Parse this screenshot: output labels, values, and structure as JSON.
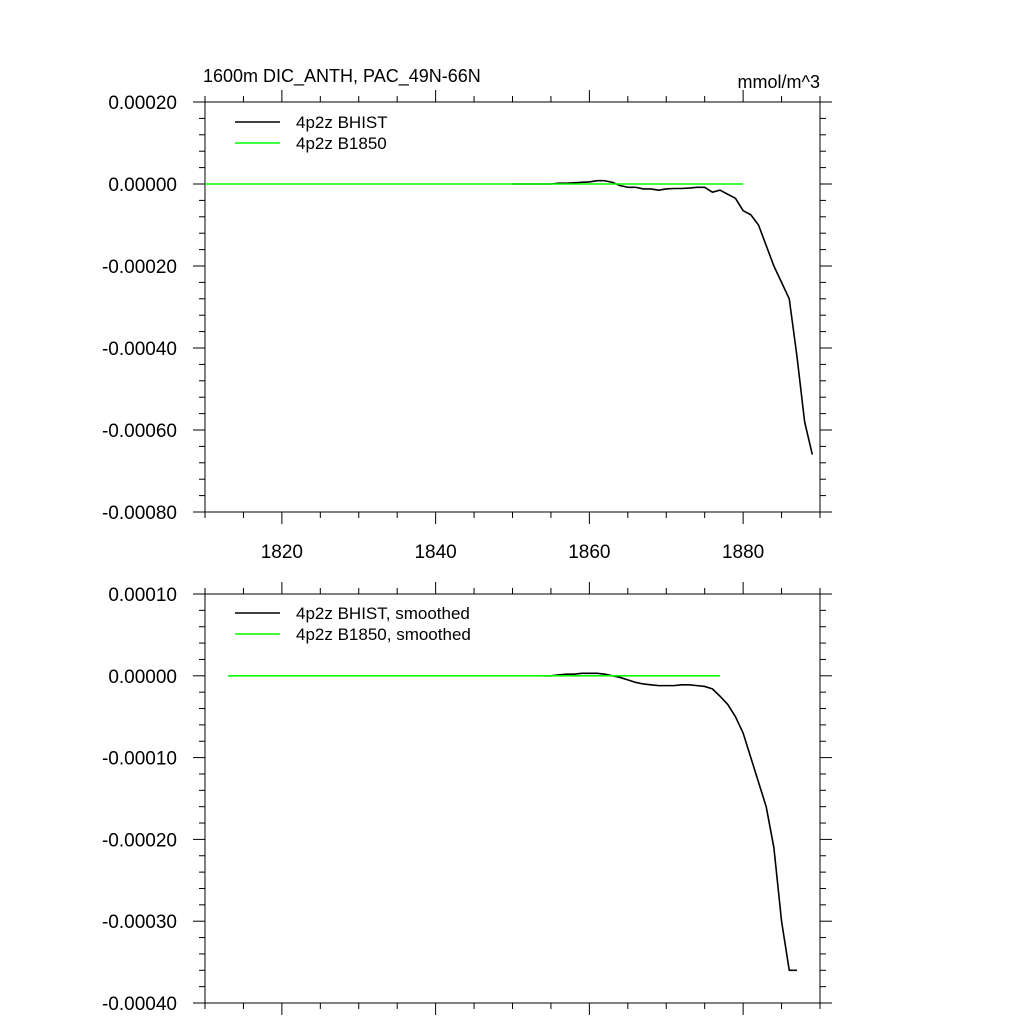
{
  "chart_data": [
    {
      "type": "line",
      "title": "1600m DIC_ANTH, PAC_49N-66N",
      "units": "mmol/m^3",
      "xlim": [
        1810,
        1890
      ],
      "ylim": [
        -0.0008,
        0.0002
      ],
      "x_ticks": [
        1820,
        1840,
        1860,
        1880
      ],
      "x_tick_labels": [
        "1820",
        "1840",
        "1860",
        "1880"
      ],
      "y_ticks": [
        0.0002,
        0.0,
        -0.0002,
        -0.0004,
        -0.0006,
        -0.0008
      ],
      "y_tick_labels": [
        "0.00020",
        "0.00000",
        "-0.00020",
        "-0.00040",
        "-0.00060",
        "-0.00080"
      ],
      "grid": false,
      "legend_position": "top-left",
      "series": [
        {
          "name": "4p2z BHIST",
          "color": "#000000",
          "x": [
            1850,
            1851,
            1852,
            1853,
            1854,
            1855,
            1856,
            1857,
            1858,
            1859,
            1860,
            1861,
            1862,
            1863,
            1864,
            1865,
            1866,
            1867,
            1868,
            1869,
            1870,
            1871,
            1872,
            1873,
            1874,
            1875,
            1876,
            1877,
            1878,
            1879,
            1880,
            1881,
            1882,
            1883,
            1884,
            1885,
            1886,
            1887,
            1888,
            1889
          ],
          "y": [
            0,
            0,
            0,
            0,
            0,
            0,
            2e-06,
            2e-06,
            3e-06,
            4e-06,
            5e-06,
            8e-06,
            8e-06,
            4e-06,
            -4e-06,
            -8e-06,
            -8e-06,
            -1.2e-05,
            -1.2e-05,
            -1.5e-05,
            -1.2e-05,
            -1.1e-05,
            -1.1e-05,
            -1e-05,
            -8e-06,
            -8e-06,
            -2e-05,
            -1.5e-05,
            -2.5e-05,
            -3.5e-05,
            -6.5e-05,
            -7.5e-05,
            -0.0001,
            -0.00015,
            -0.0002,
            -0.00024,
            -0.00028,
            -0.00042,
            -0.00058,
            -0.00066
          ]
        },
        {
          "name": "4p2z B1850",
          "color": "#00ff00",
          "x": [
            1810,
            1880
          ],
          "y": [
            0,
            0
          ]
        }
      ]
    },
    {
      "type": "line",
      "xlim": [
        1810,
        1890
      ],
      "ylim": [
        -0.0004,
        0.0001
      ],
      "x_ticks": [
        1820,
        1840,
        1860,
        1880
      ],
      "y_ticks": [
        0.0001,
        0.0,
        -0.0001,
        -0.0002,
        -0.0003,
        -0.0004
      ],
      "y_tick_labels": [
        "0.00010",
        "0.00000",
        "-0.00010",
        "-0.00020",
        "-0.00030",
        "-0.00040"
      ],
      "grid": false,
      "legend_position": "top-left",
      "series": [
        {
          "name": "4p2z BHIST, smoothed",
          "color": "#000000",
          "x": [
            1854,
            1855,
            1856,
            1857,
            1858,
            1859,
            1860,
            1861,
            1862,
            1863,
            1864,
            1865,
            1866,
            1867,
            1868,
            1869,
            1870,
            1871,
            1872,
            1873,
            1874,
            1875,
            1876,
            1877,
            1878,
            1879,
            1880,
            1881,
            1882,
            1883,
            1884,
            1885,
            1886,
            1887
          ],
          "y": [
            0,
            0,
            1e-06,
            2e-06,
            2e-06,
            3e-06,
            3e-06,
            3e-06,
            2e-06,
            0,
            -2e-06,
            -5e-06,
            -8e-06,
            -1e-05,
            -1.1e-05,
            -1.2e-05,
            -1.2e-05,
            -1.2e-05,
            -1.1e-05,
            -1.1e-05,
            -1.2e-05,
            -1.3e-05,
            -1.6e-05,
            -2.5e-05,
            -3.5e-05,
            -5e-05,
            -7e-05,
            -0.0001,
            -0.00013,
            -0.00016,
            -0.00021,
            -0.0003,
            -0.00036,
            -0.00036
          ]
        },
        {
          "name": "4p2z B1850, smoothed",
          "color": "#00ff00",
          "x": [
            1813,
            1877
          ],
          "y": [
            0,
            0
          ]
        }
      ]
    }
  ]
}
